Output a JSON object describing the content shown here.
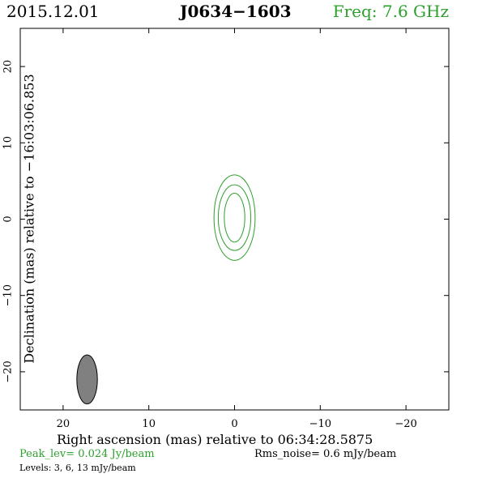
{
  "header": {
    "date": "2015.12.01",
    "source": "J0634−1603",
    "freq": "Freq: 7.6 GHz"
  },
  "footer": {
    "peak": "Peak_lev=  0.024 Jy/beam",
    "rms": "Rms_noise=  0.6 mJy/beam",
    "levels": "Levels:   3,   6,  13 mJy/beam"
  },
  "colors": {
    "contour": "#2ca02c",
    "freq_text": "#2ca02c",
    "peak_text": "#2ca02c",
    "beam_fill": "#808080"
  },
  "chart_data": {
    "type": "contour",
    "xlabel": "Right ascension (mas) relative to 06:34:28.5875",
    "ylabel": "Declination (mas) relative to −16:03:06.853",
    "xlim": [
      25,
      -25
    ],
    "ylim": [
      -25,
      25
    ],
    "xticks": [
      20,
      10,
      0,
      -10,
      -20
    ],
    "xticklabels": [
      "20",
      "10",
      "0",
      "−10",
      "−20"
    ],
    "yticks": [
      20,
      10,
      0,
      -10,
      -20
    ],
    "yticklabels": [
      "20",
      "10",
      "0",
      "−10",
      "−20"
    ],
    "contour_levels_mJy": [
      3,
      6,
      13
    ],
    "contours": [
      {
        "level": 3,
        "center": [
          0,
          0.2
        ],
        "rx": 2.4,
        "ry": 5.6
      },
      {
        "level": 6,
        "center": [
          0,
          0.2
        ],
        "rx": 1.9,
        "ry": 4.3
      },
      {
        "level": 13,
        "center": [
          0,
          0.2
        ],
        "rx": 1.2,
        "ry": 3.2
      }
    ],
    "beam": {
      "center": [
        17.2,
        -21
      ],
      "rx": 1.2,
      "ry": 3.2
    }
  }
}
